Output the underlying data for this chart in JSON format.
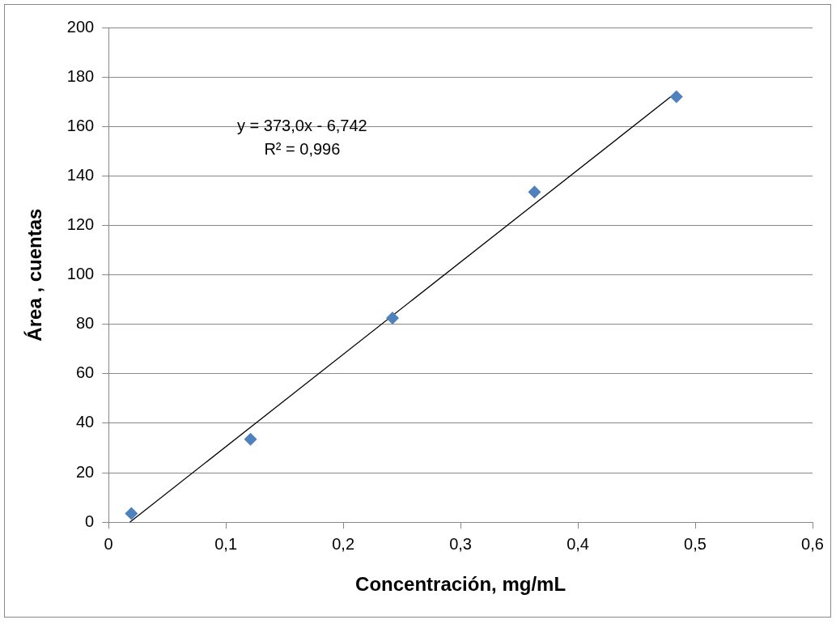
{
  "chart_data": {
    "type": "scatter",
    "xlabel": "Concentración, mg/mL",
    "ylabel": "Área , cuentas",
    "series": [
      {
        "color": "#4f81bd",
        "x": [
          0.0194,
          0.121,
          0.242,
          0.363,
          0.484
        ],
        "values": [
          3.5,
          33.5,
          82.5,
          133.5,
          172
        ],
        "marker": "diamond"
      },
      {
        "type": "line",
        "color": "#000000",
        "x": [
          0.0181,
          0.484
        ],
        "values": [
          0,
          173.8
        ],
        "marker": "none"
      }
    ],
    "annotations": [
      "y = 373,0x - 6,742",
      "R² = 0,996"
    ],
    "xlim": [
      0,
      0.6
    ],
    "xticks": [
      {
        "value": 0,
        "label": "0"
      },
      {
        "value": 0.1,
        "label": "0,1"
      },
      {
        "value": 0.2,
        "label": "0,2"
      },
      {
        "value": 0.3,
        "label": "0,3"
      },
      {
        "value": 0.4,
        "label": "0,4"
      },
      {
        "value": 0.5,
        "label": "0,5"
      },
      {
        "value": 0.6,
        "label": "0,6"
      }
    ],
    "ylim": [
      0,
      200
    ],
    "yticks": [
      0,
      20,
      40,
      60,
      80,
      100,
      120,
      140,
      160,
      180,
      200
    ],
    "grid": "y",
    "legend": false
  }
}
